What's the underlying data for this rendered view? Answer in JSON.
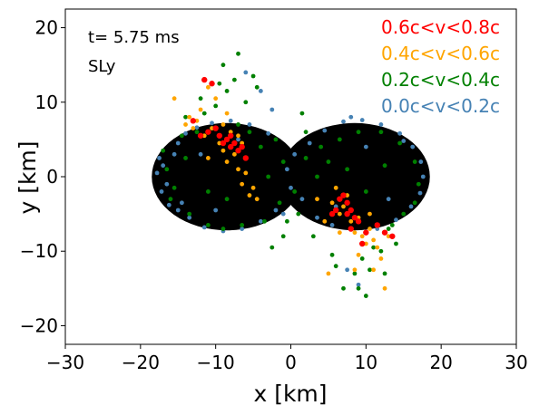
{
  "chart_data": {
    "type": "scatter",
    "xlabel": "x [km]",
    "ylabel": "y [km]",
    "xlim": [
      -30,
      30
    ],
    "ylim": [
      -22.5,
      22.5
    ],
    "x_ticks": [
      -30,
      -20,
      -10,
      0,
      10,
      20,
      30
    ],
    "y_ticks": [
      -20,
      -10,
      0,
      10,
      20
    ],
    "grid": false,
    "annotations": [
      {
        "text": "t= 5.75 ms",
        "x": -27,
        "y": 18.2
      },
      {
        "text": "SLy",
        "x": -27,
        "y": 14.5
      }
    ],
    "legend_placement": "top-right",
    "body": {
      "name": "",
      "color": "#000000",
      "lobes": [
        {
          "center": [
            -8.5,
            0.0
          ],
          "rx": 10.0,
          "ry": 7.2
        },
        {
          "center": [
            8.5,
            0.0
          ],
          "rx": 10.0,
          "ry": 7.2
        }
      ]
    },
    "series": [
      {
        "name": "0.0c<v<0.2c",
        "color": "#4682b4",
        "points": [
          [
            -17.5,
            2.5
          ],
          [
            -17.8,
            0.5
          ],
          [
            -17.2,
            -2.0
          ],
          [
            -16.2,
            -3.8
          ],
          [
            -15.0,
            4.5
          ],
          [
            -14.0,
            5.8
          ],
          [
            -12.5,
            6.6
          ],
          [
            -10.5,
            7.2
          ],
          [
            -8.0,
            7.5
          ],
          [
            -5.5,
            7.0
          ],
          [
            -3.0,
            5.8
          ],
          [
            -13.5,
            -5.5
          ],
          [
            -11.5,
            -6.8
          ],
          [
            -9.0,
            -7.3
          ],
          [
            -6.5,
            -7.0
          ],
          [
            -4.0,
            -6.0
          ],
          [
            -2.0,
            -4.5
          ],
          [
            -17.0,
            1.5
          ],
          [
            -16.5,
            -1.0
          ],
          [
            -15.5,
            3.0
          ],
          [
            2.5,
            4.5
          ],
          [
            4.5,
            6.2
          ],
          [
            7.0,
            7.4
          ],
          [
            9.5,
            7.6
          ],
          [
            12.0,
            7.0
          ],
          [
            14.5,
            5.8
          ],
          [
            16.2,
            4.0
          ],
          [
            17.3,
            2.0
          ],
          [
            17.6,
            0.0
          ],
          [
            17.2,
            -2.2
          ],
          [
            16.0,
            -4.0
          ],
          [
            14.0,
            -5.8
          ],
          [
            11.5,
            -7.0
          ],
          [
            3.5,
            -5.5
          ],
          [
            1.5,
            -3.0
          ],
          [
            5.5,
            -6.5
          ],
          [
            8.0,
            8.0
          ],
          [
            -1.0,
            -5.0
          ],
          [
            -14.5,
            -3.5
          ],
          [
            0.5,
            3.0
          ],
          [
            -6.0,
            14.0
          ],
          [
            -4.0,
            11.5
          ],
          [
            7.5,
            -12.5
          ],
          [
            9.0,
            -14.5
          ],
          [
            -2.5,
            9.0
          ],
          [
            -12.0,
            3.0
          ],
          [
            13.0,
            -3.0
          ],
          [
            -10.0,
            -4.5
          ],
          [
            10.0,
            4.0
          ],
          [
            -7.0,
            5.0
          ],
          [
            6.0,
            -4.0
          ],
          [
            -15.0,
            -4.5
          ],
          [
            15.0,
            4.8
          ],
          [
            -0.5,
            1.0
          ],
          [
            0.0,
            -1.5
          ]
        ]
      },
      {
        "name": "0.2c<v<0.4c",
        "color": "#008000",
        "points": [
          [
            -17.0,
            3.5
          ],
          [
            -16.0,
            -3.0
          ],
          [
            -14.5,
            5.5
          ],
          [
            -12.5,
            6.0
          ],
          [
            -13.5,
            -5.0
          ],
          [
            -11.0,
            -6.5
          ],
          [
            -9.0,
            -7.0
          ],
          [
            -6.5,
            -6.5
          ],
          [
            -3.5,
            -6.0
          ],
          [
            -1.5,
            -3.5
          ],
          [
            -10.0,
            9.5
          ],
          [
            -8.5,
            11.5
          ],
          [
            -6.0,
            10.0
          ],
          [
            -12.0,
            10.5
          ],
          [
            -14.0,
            8.0
          ],
          [
            -5.0,
            13.5
          ],
          [
            -4.5,
            12.0
          ],
          [
            -7.5,
            13.0
          ],
          [
            -9.5,
            12.5
          ],
          [
            -11.5,
            8.5
          ],
          [
            -1.0,
            -8.0
          ],
          [
            -2.0,
            5.0
          ],
          [
            -4.0,
            4.0
          ],
          [
            -3.0,
            0.0
          ],
          [
            -1.0,
            2.0
          ],
          [
            2.0,
            2.5
          ],
          [
            4.0,
            4.0
          ],
          [
            2.0,
            6.0
          ],
          [
            5.0,
            2.0
          ],
          [
            6.5,
            5.0
          ],
          [
            9.0,
            6.0
          ],
          [
            12.0,
            6.0
          ],
          [
            14.5,
            4.5
          ],
          [
            16.5,
            2.0
          ],
          [
            17.0,
            -1.0
          ],
          [
            16.5,
            -3.5
          ],
          [
            15.0,
            -5.0
          ],
          [
            13.0,
            -7.0
          ],
          [
            11.0,
            -9.5
          ],
          [
            9.5,
            -11.0
          ],
          [
            8.5,
            -13.0
          ],
          [
            10.5,
            -12.5
          ],
          [
            12.0,
            -10.0
          ],
          [
            7.0,
            -15.0
          ],
          [
            6.0,
            -12.0
          ],
          [
            5.5,
            -10.5
          ],
          [
            9.0,
            -15.0
          ],
          [
            12.5,
            -13.0
          ],
          [
            14.0,
            -9.0
          ],
          [
            13.5,
            -6.5
          ],
          [
            1.0,
            -5.0
          ],
          [
            3.0,
            -8.0
          ],
          [
            -0.5,
            -6.0
          ],
          [
            0.5,
            -2.0
          ],
          [
            -16.5,
            1.0
          ],
          [
            -15.5,
            -1.5
          ],
          [
            -14.0,
            2.5
          ],
          [
            -7.0,
            7.0
          ],
          [
            -5.5,
            6.0
          ],
          [
            3.5,
            0.0
          ],
          [
            7.5,
            1.0
          ],
          [
            10.0,
            -2.0
          ],
          [
            12.5,
            1.5
          ],
          [
            -8.5,
            -3.0
          ],
          [
            -11.0,
            -2.0
          ],
          [
            -2.5,
            -9.5
          ],
          [
            1.5,
            8.5
          ],
          [
            -9.0,
            15.0
          ],
          [
            -7.0,
            16.5
          ],
          [
            10.0,
            -16.0
          ]
        ]
      },
      {
        "name": "0.4c<v<0.6c",
        "color": "#ffa500",
        "points": [
          [
            -15.5,
            10.5
          ],
          [
            -13.5,
            8.0
          ],
          [
            -12.5,
            7.5
          ],
          [
            -11.5,
            5.5
          ],
          [
            -10.5,
            6.5
          ],
          [
            -9.5,
            4.5
          ],
          [
            -9.0,
            3.5
          ],
          [
            -8.5,
            2.0
          ],
          [
            -7.5,
            3.0
          ],
          [
            -7.0,
            1.0
          ],
          [
            -6.5,
            -1.0
          ],
          [
            -6.0,
            0.5
          ],
          [
            -5.5,
            -2.5
          ],
          [
            -4.5,
            -3.0
          ],
          [
            -8.0,
            6.0
          ],
          [
            -10.0,
            10.5
          ],
          [
            -11.0,
            12.0
          ],
          [
            -12.0,
            9.0
          ],
          [
            -13.0,
            6.5
          ],
          [
            -14.0,
            7.0
          ],
          [
            -6.5,
            4.5
          ],
          [
            -5.0,
            -1.5
          ],
          [
            5.5,
            -3.5
          ],
          [
            6.0,
            -1.5
          ],
          [
            6.5,
            -5.0
          ],
          [
            7.0,
            -4.0
          ],
          [
            7.5,
            -2.5
          ],
          [
            8.0,
            -6.0
          ],
          [
            8.5,
            -7.5
          ],
          [
            9.0,
            -5.5
          ],
          [
            9.5,
            -8.0
          ],
          [
            10.0,
            -9.0
          ],
          [
            10.5,
            -7.0
          ],
          [
            11.0,
            -8.5
          ],
          [
            11.5,
            -9.5
          ],
          [
            12.0,
            -11.0
          ],
          [
            11.0,
            -12.5
          ],
          [
            12.5,
            -15.0
          ],
          [
            8.5,
            -12.5
          ],
          [
            5.0,
            -13.0
          ],
          [
            4.5,
            -6.0
          ],
          [
            3.5,
            -3.0
          ],
          [
            9.0,
            -10.5
          ],
          [
            13.0,
            -8.0
          ],
          [
            -9.0,
            7.0
          ],
          [
            -7.0,
            5.5
          ],
          [
            -8.5,
            8.5
          ],
          [
            -11.0,
            2.5
          ],
          [
            6.5,
            -7.5
          ],
          [
            10.5,
            -5.0
          ]
        ]
      },
      {
        "name": "0.6c<v<0.8c",
        "color": "#ff0000",
        "points": [
          [
            -10.5,
            12.5
          ],
          [
            -11.5,
            13.0
          ],
          [
            -10.0,
            6.5
          ],
          [
            -9.5,
            5.5
          ],
          [
            -9.0,
            4.5
          ],
          [
            -8.5,
            5.0
          ],
          [
            -8.0,
            4.0
          ],
          [
            -7.5,
            4.5
          ],
          [
            -7.0,
            3.5
          ],
          [
            -6.5,
            4.0
          ],
          [
            -6.0,
            2.5
          ],
          [
            -12.0,
            5.5
          ],
          [
            -13.0,
            7.5
          ],
          [
            -11.0,
            6.0
          ],
          [
            6.5,
            -3.0
          ],
          [
            7.0,
            -2.5
          ],
          [
            7.5,
            -3.5
          ],
          [
            8.0,
            -4.5
          ],
          [
            7.5,
            -5.0
          ],
          [
            8.5,
            -5.5
          ],
          [
            9.0,
            -6.0
          ],
          [
            6.0,
            -4.5
          ],
          [
            5.5,
            -5.0
          ],
          [
            10.0,
            -7.5
          ],
          [
            11.5,
            -6.5
          ],
          [
            13.5,
            -8.0
          ],
          [
            12.5,
            -7.5
          ],
          [
            9.5,
            -9.0
          ],
          [
            8.0,
            -7.0
          ],
          [
            -8.0,
            5.5
          ]
        ]
      }
    ]
  }
}
